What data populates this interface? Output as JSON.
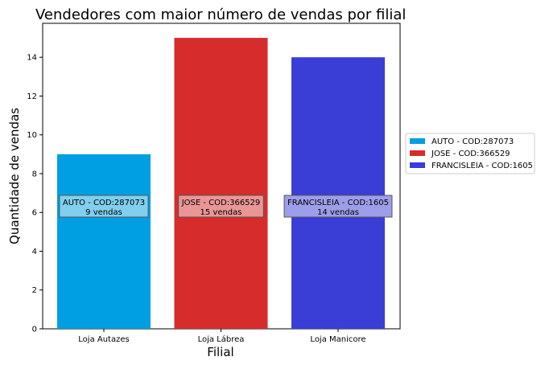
{
  "chart_data": {
    "type": "bar",
    "title": "Vendedores com maior número de vendas por filial",
    "xlabel": "Filial",
    "ylabel": "Quantidade de vendas",
    "categories": [
      "Loja Autazes",
      "Loja Lábrea",
      "Loja Manicore"
    ],
    "values": [
      9,
      15,
      14
    ],
    "bar_colors": [
      "#009fe3",
      "#d62c2c",
      "#3a3dd6"
    ],
    "label_box_colors": [
      "#80cfee",
      "#ea9696",
      "#9d9eea"
    ],
    "ylim": [
      0,
      15.75
    ],
    "yticks": [
      "0",
      "2",
      "4",
      "6",
      "8",
      "10",
      "12",
      "14"
    ],
    "bar_labels": [
      {
        "seller": "AUTO - COD:287073",
        "sales": "9 vendas"
      },
      {
        "seller": "JOSE - COD:366529",
        "sales": "15 vendas"
      },
      {
        "seller": "FRANCISLEIA - COD:1605",
        "sales": "14 vendas"
      }
    ],
    "label_y_value": 6.3,
    "legend": [
      "AUTO - COD:287073",
      "JOSE - COD:366529",
      "FRANCISLEIA - COD:1605"
    ],
    "legend_position": "right",
    "grid": false
  }
}
